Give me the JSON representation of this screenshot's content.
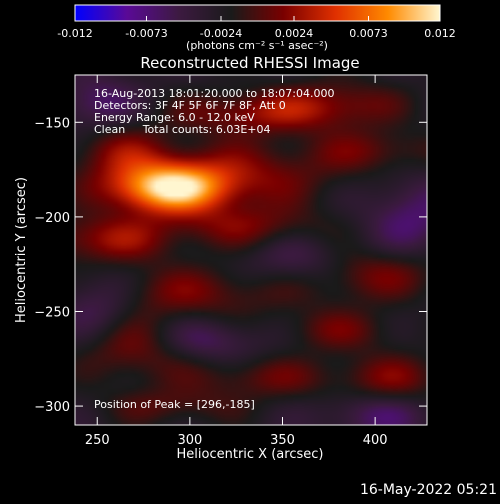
{
  "chart_data": {
    "type": "heatmap",
    "title": "Reconstructed RHESSI Image",
    "xlabel": "Heliocentric X (arcsec)",
    "ylabel": "Heliocentric Y (arcsec)",
    "xlim": [
      238,
      428
    ],
    "ylim": [
      -310,
      -125
    ],
    "x_ticks": [
      250,
      300,
      350,
      400
    ],
    "y_ticks": [
      -150,
      -200,
      -250,
      -300
    ],
    "colorbar": {
      "range": [
        -0.012,
        0.012
      ],
      "ticks": [
        "-0.012",
        "-0.0073",
        "-0.0024",
        "0.0024",
        "0.0073",
        "0.012"
      ],
      "tick_values": [
        -0.012,
        -0.0073,
        -0.0024,
        0.0024,
        0.0073,
        0.012
      ],
      "label": "(photons cm⁻² s⁻¹ asec⁻²)",
      "colors": [
        "#0000ff",
        "#5a0a96",
        "#3c1a40",
        "#1a1a1a",
        "#7a0000",
        "#e03000",
        "#ff8a00",
        "#fff6d0"
      ]
    },
    "annotations": [
      "16-Aug-2013 18:01:20.000 to 18:07:04.000",
      "Detectors: 3F 4F 5F 6F 7F 8F, Att 0",
      "Energy Range: 6.0 - 12.0 keV",
      "Clean     Total counts: 6.03E+04"
    ],
    "peak_label": "Position of Peak = [296,-185]",
    "peak": [
      296,
      -185
    ],
    "blobs": [
      {
        "x": 288,
        "y": -185,
        "sx": 22,
        "sy": 9,
        "v": 0.0125
      },
      {
        "x": 320,
        "y": -178,
        "sx": 40,
        "sy": 12,
        "v": 0.005
      },
      {
        "x": 262,
        "y": -165,
        "sx": 18,
        "sy": 10,
        "v": 0.004
      },
      {
        "x": 335,
        "y": -145,
        "sx": 30,
        "sy": 8,
        "v": 0.005
      },
      {
        "x": 380,
        "y": -140,
        "sx": 25,
        "sy": 9,
        "v": 0.004
      },
      {
        "x": 400,
        "y": -165,
        "sx": 25,
        "sy": 8,
        "v": 0.0035
      },
      {
        "x": 255,
        "y": -212,
        "sx": 25,
        "sy": 9,
        "v": 0.0055
      },
      {
        "x": 330,
        "y": -205,
        "sx": 30,
        "sy": 8,
        "v": 0.004
      },
      {
        "x": 300,
        "y": -240,
        "sx": 40,
        "sy": 10,
        "v": 0.004
      },
      {
        "x": 395,
        "y": -230,
        "sx": 30,
        "sy": 10,
        "v": 0.0045
      },
      {
        "x": 380,
        "y": -260,
        "sx": 22,
        "sy": 8,
        "v": 0.0035
      },
      {
        "x": 270,
        "y": -270,
        "sx": 20,
        "sy": 12,
        "v": 0.004
      },
      {
        "x": 340,
        "y": -285,
        "sx": 30,
        "sy": 8,
        "v": 0.0035
      },
      {
        "x": 290,
        "y": -300,
        "sx": 25,
        "sy": 7,
        "v": 0.003
      },
      {
        "x": 410,
        "y": -285,
        "sx": 20,
        "sy": 9,
        "v": 0.004
      },
      {
        "x": 250,
        "y": -140,
        "sx": 15,
        "sy": 10,
        "v": -0.004
      },
      {
        "x": 420,
        "y": -200,
        "sx": 18,
        "sy": 15,
        "v": -0.004
      },
      {
        "x": 360,
        "y": -225,
        "sx": 20,
        "sy": 10,
        "v": -0.004
      },
      {
        "x": 250,
        "y": -245,
        "sx": 15,
        "sy": 12,
        "v": -0.004
      },
      {
        "x": 310,
        "y": -265,
        "sx": 20,
        "sy": 8,
        "v": -0.0035
      },
      {
        "x": 400,
        "y": -305,
        "sx": 20,
        "sy": 8,
        "v": -0.0035
      }
    ]
  },
  "footer_date": "16-May-2022 05:21"
}
